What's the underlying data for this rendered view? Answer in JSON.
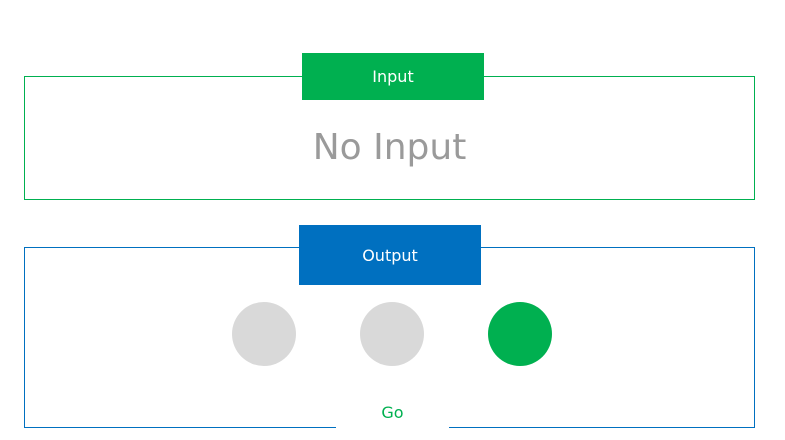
{
  "input": {
    "tab_label": "Input",
    "value": "No Input",
    "accent_color": "#00b050"
  },
  "output": {
    "tab_label": "Output",
    "accent_color": "#0070c0",
    "indicators": [
      {
        "state": "off",
        "color": "#d9d9d9"
      },
      {
        "state": "off",
        "color": "#d9d9d9"
      },
      {
        "state": "on",
        "color": "#00b050"
      }
    ],
    "status_label": "Go"
  }
}
